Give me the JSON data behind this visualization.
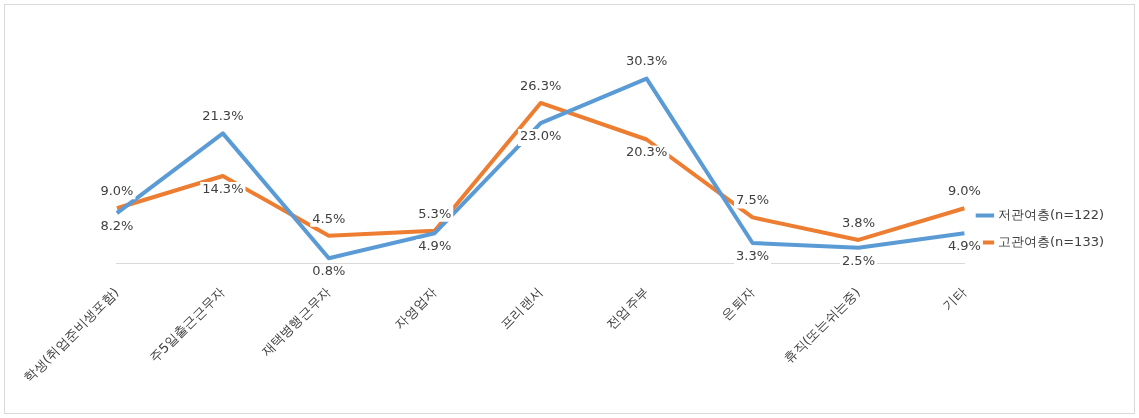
{
  "chart_data": {
    "type": "line",
    "categories": [
      "학생(취업준비생포함)",
      "주5일출근근무자",
      "재택병행근무자",
      "자영업자",
      "프리랜서",
      "전업주부",
      "은퇴자",
      "휴직(또는쉬는중)",
      "기타"
    ],
    "series": [
      {
        "name": "저관여층(n=122)",
        "color": "#5b9bd5",
        "values": [
          8.2,
          21.3,
          0.8,
          4.9,
          23.0,
          30.3,
          3.3,
          2.5,
          4.9
        ],
        "value_labels": [
          "8.2%",
          "21.3%",
          "0.8%",
          "4.9%",
          "23.0%",
          "30.3%",
          "3.3%",
          "2.5%",
          "4.9%"
        ]
      },
      {
        "name": "고관여층(n=133)",
        "color": "#ed7d31",
        "values": [
          9.0,
          14.3,
          4.5,
          5.3,
          26.3,
          20.3,
          7.5,
          3.8,
          9.0
        ],
        "value_labels": [
          "9.0%",
          "14.3%",
          "4.5%",
          "5.3%",
          "26.3%",
          "20.3%",
          "7.5%",
          "3.8%",
          "9.0%"
        ]
      }
    ],
    "legend": "right",
    "grid": false,
    "marker": "none",
    "line_style": "solid"
  }
}
